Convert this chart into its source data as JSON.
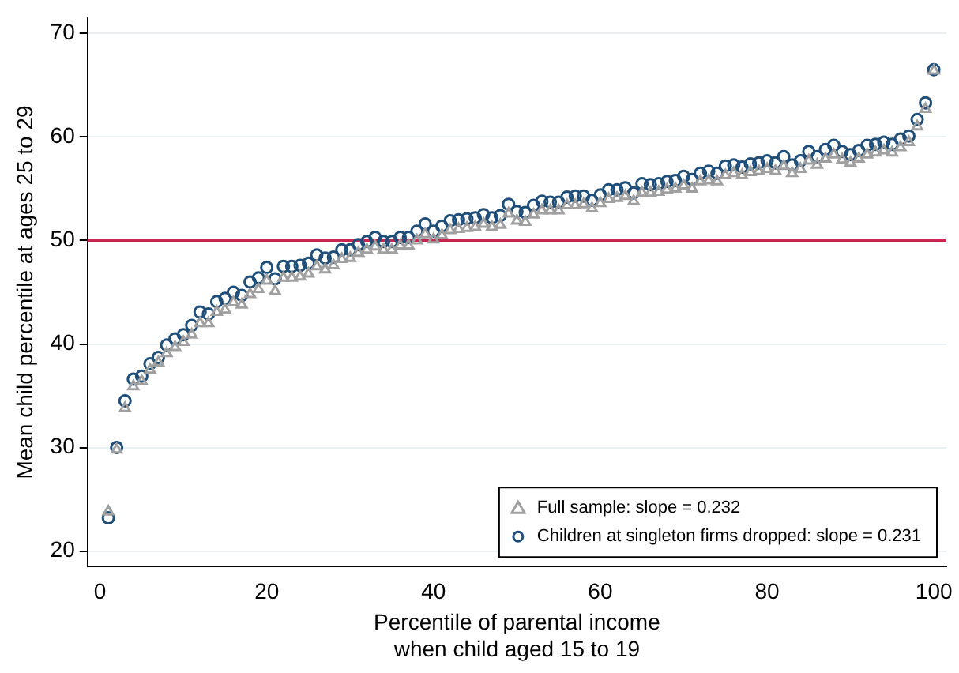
{
  "chart_data": {
    "type": "scatter",
    "xlabel": "Percentile of parental income\nwhen child aged 15 to 19",
    "ylabel": "Mean child percentile at ages 25 to 29",
    "x": [
      1,
      2,
      3,
      4,
      5,
      6,
      7,
      8,
      9,
      10,
      11,
      12,
      13,
      14,
      15,
      16,
      17,
      18,
      19,
      20,
      21,
      22,
      23,
      24,
      25,
      26,
      27,
      28,
      29,
      30,
      31,
      32,
      33,
      34,
      35,
      36,
      37,
      38,
      39,
      40,
      41,
      42,
      43,
      44,
      45,
      46,
      47,
      48,
      49,
      50,
      51,
      52,
      53,
      54,
      55,
      56,
      57,
      58,
      59,
      60,
      61,
      62,
      63,
      64,
      65,
      66,
      67,
      68,
      69,
      70,
      71,
      72,
      73,
      74,
      75,
      76,
      77,
      78,
      79,
      80,
      81,
      82,
      83,
      84,
      85,
      86,
      87,
      88,
      89,
      90,
      91,
      92,
      93,
      94,
      95,
      96,
      97,
      98,
      99,
      100
    ],
    "series": [
      {
        "name": "Full sample: slope = 0.232",
        "color": "#a0a0a0",
        "marker": "triangle",
        "values": [
          23.8,
          29.8,
          33.8,
          35.9,
          36.4,
          37.5,
          38.2,
          39.1,
          39.7,
          40.2,
          40.9,
          42.0,
          42.0,
          43.1,
          43.3,
          44.0,
          43.8,
          44.8,
          45.3,
          46.1,
          45.1,
          46.4,
          46.4,
          46.5,
          46.8,
          47.5,
          47.2,
          47.6,
          48.2,
          48.3,
          48.8,
          49.1,
          49.4,
          49.1,
          49.1,
          49.5,
          49.5,
          50.0,
          50.6,
          50.1,
          50.5,
          51.0,
          51.1,
          51.2,
          51.3,
          51.6,
          51.3,
          51.5,
          52.6,
          51.9,
          51.8,
          52.5,
          52.9,
          52.9,
          52.9,
          53.4,
          53.4,
          53.5,
          53.1,
          53.6,
          54.0,
          54.1,
          54.3,
          53.8,
          54.6,
          54.6,
          54.7,
          54.9,
          55.0,
          55.3,
          55.0,
          55.7,
          55.8,
          55.7,
          56.3,
          56.5,
          56.3,
          56.6,
          56.7,
          56.9,
          56.7,
          57.2,
          56.5,
          56.9,
          57.7,
          57.3,
          57.9,
          58.3,
          57.8,
          57.5,
          57.9,
          58.3,
          58.5,
          58.7,
          58.5,
          59.0,
          59.5,
          61.0,
          62.7,
          66.4
        ]
      },
      {
        "name": "Children at singleton firms dropped: slope = 0.231",
        "color": "#1f4e79",
        "marker": "circle",
        "values": [
          23.2,
          30.0,
          34.5,
          36.6,
          36.9,
          38.1,
          38.7,
          39.9,
          40.5,
          40.9,
          41.8,
          43.1,
          42.9,
          44.1,
          44.4,
          45.0,
          44.7,
          46.0,
          46.4,
          47.4,
          46.3,
          47.5,
          47.5,
          47.6,
          47.8,
          48.6,
          48.3,
          48.4,
          49.1,
          49.1,
          49.6,
          49.9,
          50.3,
          49.9,
          49.9,
          50.3,
          50.3,
          50.9,
          51.6,
          50.9,
          51.4,
          51.9,
          52.0,
          52.1,
          52.2,
          52.5,
          52.2,
          52.4,
          53.5,
          52.8,
          52.7,
          53.4,
          53.8,
          53.7,
          53.7,
          54.2,
          54.3,
          54.3,
          53.9,
          54.4,
          54.9,
          54.9,
          55.1,
          54.6,
          55.5,
          55.4,
          55.5,
          55.7,
          55.8,
          56.2,
          55.9,
          56.5,
          56.7,
          56.5,
          57.2,
          57.3,
          57.1,
          57.4,
          57.5,
          57.7,
          57.5,
          58.1,
          57.3,
          57.7,
          58.6,
          58.1,
          58.8,
          59.2,
          58.6,
          58.3,
          58.7,
          59.2,
          59.3,
          59.5,
          59.3,
          59.8,
          60.1,
          61.7,
          63.3,
          66.5
        ]
      }
    ],
    "xlim": [
      -1.5,
      101.5
    ],
    "xticks": [
      0,
      20,
      40,
      60,
      80,
      100
    ],
    "ylim": [
      18.5,
      71.5
    ],
    "yticks": [
      20,
      30,
      40,
      50,
      60,
      70
    ],
    "ref_lines": [
      {
        "axis": "y",
        "value": 50,
        "color": "#c8284f"
      }
    ],
    "grid": "y",
    "legend": "bottom right"
  }
}
